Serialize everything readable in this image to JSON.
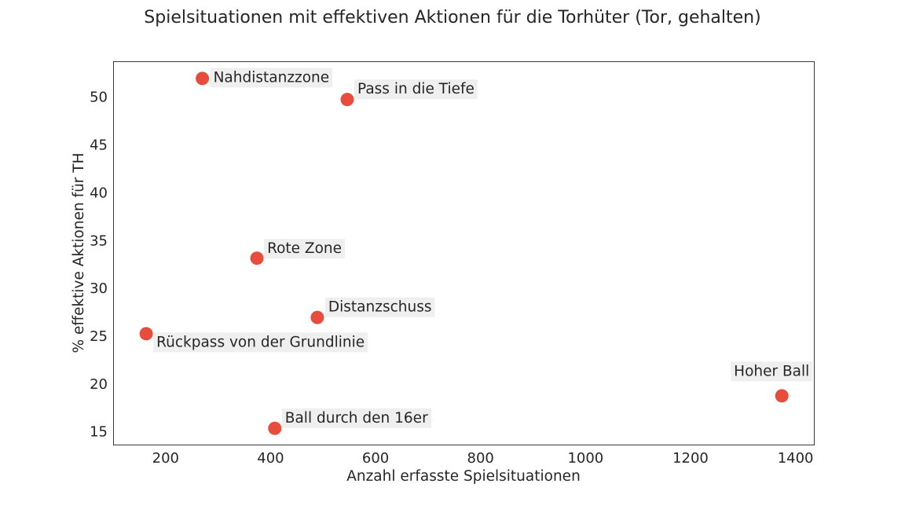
{
  "chart_data": {
    "type": "scatter",
    "title": "",
    "subtitle": "Spielsituationen mit effektiven Aktionen für die Torhüter (Tor, gehalten)",
    "xlabel": "Anzahl erfasste Spielsituationen",
    "ylabel": "% effektive Aktionen für TH",
    "xlim": [
      100,
      1435
    ],
    "ylim": [
      13.7,
      53.8
    ],
    "xticks": [
      200,
      400,
      600,
      800,
      1000,
      1200,
      1400
    ],
    "yticks": [
      15,
      20,
      25,
      30,
      35,
      40,
      45,
      50
    ],
    "grid": false,
    "marker_color": "#e74c3c",
    "label_bg_color": "#ececec",
    "points": [
      {
        "label": "Nahdistanzzone",
        "x": 270,
        "y": 52.0
      },
      {
        "label": "Pass in die Tiefe",
        "x": 546,
        "y": 49.8
      },
      {
        "label": "Rote Zone",
        "x": 374,
        "y": 33.2
      },
      {
        "label": "Distanzschuss",
        "x": 489,
        "y": 27.0
      },
      {
        "label": "Rückpass von der Grundlinie",
        "x": 163,
        "y": 25.3
      },
      {
        "label": "Hoher Ball",
        "x": 1374,
        "y": 18.8
      },
      {
        "label": "Ball durch den 16er",
        "x": 408,
        "y": 15.4
      }
    ]
  }
}
